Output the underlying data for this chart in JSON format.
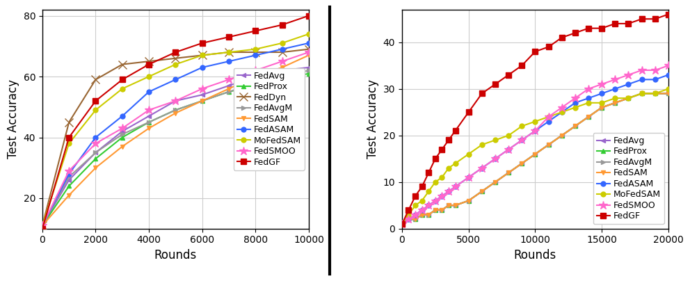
{
  "left": {
    "xlabel": "Rounds",
    "ylabel": "Test Accuracy",
    "xlim": [
      0,
      10000
    ],
    "ylim": [
      10,
      82
    ],
    "xticks": [
      0,
      2000,
      4000,
      6000,
      8000,
      10000
    ],
    "yticks": [
      20,
      40,
      60,
      80
    ],
    "series": {
      "FedAvg": {
        "color": "#9966CC",
        "marker": "<",
        "x": [
          0,
          1000,
          2000,
          3000,
          4000,
          5000,
          6000,
          7000,
          8000,
          9000,
          10000
        ],
        "y": [
          11,
          26,
          35,
          42,
          47,
          52,
          54,
          57,
          60,
          62,
          63
        ]
      },
      "FedProx": {
        "color": "#33CC33",
        "marker": "^",
        "x": [
          0,
          1000,
          2000,
          3000,
          4000,
          5000,
          6000,
          7000,
          8000,
          9000,
          10000
        ],
        "y": [
          11,
          24,
          33,
          40,
          45,
          49,
          52,
          55,
          57,
          59,
          61
        ]
      },
      "FedDyn": {
        "color": "#996633",
        "marker": "x",
        "x": [
          0,
          1000,
          2000,
          3000,
          4000,
          5000,
          6000,
          7000,
          8000,
          9000,
          10000
        ],
        "y": [
          11,
          45,
          59,
          64,
          65,
          66,
          67,
          68,
          68,
          68,
          69
        ]
      },
      "FedAvgM": {
        "color": "#999999",
        "marker": ">",
        "x": [
          0,
          1000,
          2000,
          3000,
          4000,
          5000,
          6000,
          7000,
          8000,
          9000,
          10000
        ],
        "y": [
          11,
          27,
          35,
          41,
          45,
          49,
          52,
          55,
          58,
          60,
          62
        ]
      },
      "FedSAM": {
        "color": "#FF9933",
        "marker": "v",
        "x": [
          0,
          1000,
          2000,
          3000,
          4000,
          5000,
          6000,
          7000,
          8000,
          9000,
          10000
        ],
        "y": [
          11,
          21,
          30,
          37,
          43,
          48,
          52,
          56,
          60,
          63,
          67
        ]
      },
      "FedASAM": {
        "color": "#3366FF",
        "marker": "o",
        "x": [
          0,
          1000,
          2000,
          3000,
          4000,
          5000,
          6000,
          7000,
          8000,
          9000,
          10000
        ],
        "y": [
          11,
          28,
          40,
          47,
          55,
          59,
          63,
          65,
          67,
          69,
          71
        ]
      },
      "MoFedSAM": {
        "color": "#CCCC00",
        "marker": "o",
        "x": [
          0,
          1000,
          2000,
          3000,
          4000,
          5000,
          6000,
          7000,
          8000,
          9000,
          10000
        ],
        "y": [
          11,
          38,
          49,
          56,
          60,
          64,
          67,
          68,
          69,
          71,
          74
        ]
      },
      "FedSMOO": {
        "color": "#FF66CC",
        "marker": "*",
        "x": [
          0,
          1000,
          2000,
          3000,
          4000,
          5000,
          6000,
          7000,
          8000,
          9000,
          10000
        ],
        "y": [
          11,
          29,
          38,
          43,
          49,
          52,
          56,
          59,
          62,
          65,
          68
        ]
      },
      "FedGF": {
        "color": "#CC0000",
        "marker": "s",
        "x": [
          0,
          1000,
          2000,
          3000,
          4000,
          5000,
          6000,
          7000,
          8000,
          9000,
          10000
        ],
        "y": [
          10,
          40,
          52,
          59,
          64,
          68,
          71,
          73,
          75,
          77,
          80
        ]
      }
    }
  },
  "right": {
    "xlabel": "Rounds",
    "ylabel": "Test Accuracy",
    "xlim": [
      0,
      20000
    ],
    "ylim": [
      0,
      47
    ],
    "xticks": [
      0,
      5000,
      10000,
      15000,
      20000
    ],
    "yticks": [
      0,
      10,
      20,
      30,
      40
    ],
    "series": {
      "FedAvg": {
        "color": "#9966CC",
        "marker": "<",
        "x": [
          0,
          500,
          1000,
          1500,
          2000,
          2500,
          3000,
          3500,
          4000,
          5000,
          6000,
          7000,
          8000,
          9000,
          10000,
          11000,
          12000,
          13000,
          14000,
          15000,
          16000,
          17000,
          18000,
          19000,
          20000
        ],
        "y": [
          1,
          2,
          2,
          3,
          3,
          4,
          4,
          5,
          5,
          6,
          8,
          10,
          12,
          14,
          16,
          18,
          20,
          22,
          24,
          26,
          27,
          28,
          29,
          29,
          29
        ]
      },
      "FedProx": {
        "color": "#33CC33",
        "marker": "^",
        "x": [
          0,
          500,
          1000,
          1500,
          2000,
          2500,
          3000,
          3500,
          4000,
          5000,
          6000,
          7000,
          8000,
          9000,
          10000,
          11000,
          12000,
          13000,
          14000,
          15000,
          16000,
          17000,
          18000,
          19000,
          20000
        ],
        "y": [
          1,
          2,
          2,
          3,
          3,
          4,
          4,
          5,
          5,
          6,
          8,
          10,
          12,
          14,
          16,
          18,
          20,
          22,
          24,
          26,
          27,
          28,
          29,
          29,
          29
        ]
      },
      "FedAvgM": {
        "color": "#999999",
        "marker": ">",
        "x": [
          0,
          500,
          1000,
          1500,
          2000,
          2500,
          3000,
          3500,
          4000,
          5000,
          6000,
          7000,
          8000,
          9000,
          10000,
          11000,
          12000,
          13000,
          14000,
          15000,
          16000,
          17000,
          18000,
          19000,
          20000
        ],
        "y": [
          1,
          2,
          2,
          3,
          3,
          4,
          4,
          5,
          5,
          6,
          8,
          10,
          12,
          14,
          16,
          18,
          20,
          22,
          24,
          26,
          27,
          28,
          29,
          29,
          29
        ]
      },
      "FedSAM": {
        "color": "#FF9933",
        "marker": "v",
        "x": [
          0,
          500,
          1000,
          1500,
          2000,
          2500,
          3000,
          3500,
          4000,
          5000,
          6000,
          7000,
          8000,
          9000,
          10000,
          11000,
          12000,
          13000,
          14000,
          15000,
          16000,
          17000,
          18000,
          19000,
          20000
        ],
        "y": [
          1,
          2,
          2,
          3,
          3,
          4,
          4,
          5,
          5,
          6,
          8,
          10,
          12,
          14,
          16,
          18,
          20,
          22,
          24,
          26,
          27,
          28,
          29,
          29,
          29
        ]
      },
      "FedASAM": {
        "color": "#3366FF",
        "marker": "o",
        "x": [
          0,
          500,
          1000,
          1500,
          2000,
          2500,
          3000,
          3500,
          4000,
          5000,
          6000,
          7000,
          8000,
          9000,
          10000,
          11000,
          12000,
          13000,
          14000,
          15000,
          16000,
          17000,
          18000,
          19000,
          20000
        ],
        "y": [
          1,
          2,
          3,
          4,
          5,
          6,
          7,
          8,
          9,
          11,
          13,
          15,
          17,
          19,
          21,
          23,
          25,
          27,
          28,
          29,
          30,
          31,
          32,
          32,
          33
        ]
      },
      "MoFedSAM": {
        "color": "#CCCC00",
        "marker": "o",
        "x": [
          0,
          500,
          1000,
          1500,
          2000,
          2500,
          3000,
          3500,
          4000,
          5000,
          6000,
          7000,
          8000,
          9000,
          10000,
          11000,
          12000,
          13000,
          14000,
          15000,
          16000,
          17000,
          18000,
          19000,
          20000
        ],
        "y": [
          1,
          3,
          5,
          6,
          8,
          10,
          11,
          13,
          14,
          16,
          18,
          19,
          20,
          22,
          23,
          24,
          25,
          26,
          27,
          27,
          28,
          28,
          29,
          29,
          30
        ]
      },
      "FedSMOO": {
        "color": "#FF66CC",
        "marker": "*",
        "x": [
          0,
          500,
          1000,
          1500,
          2000,
          2500,
          3000,
          3500,
          4000,
          5000,
          6000,
          7000,
          8000,
          9000,
          10000,
          11000,
          12000,
          13000,
          14000,
          15000,
          16000,
          17000,
          18000,
          19000,
          20000
        ],
        "y": [
          1,
          2,
          3,
          4,
          5,
          6,
          7,
          8,
          9,
          11,
          13,
          15,
          17,
          19,
          21,
          24,
          26,
          28,
          30,
          31,
          32,
          33,
          34,
          34,
          35
        ]
      },
      "FedGF": {
        "color": "#CC0000",
        "marker": "s",
        "x": [
          0,
          500,
          1000,
          1500,
          2000,
          2500,
          3000,
          3500,
          4000,
          5000,
          6000,
          7000,
          8000,
          9000,
          10000,
          11000,
          12000,
          13000,
          14000,
          15000,
          16000,
          17000,
          18000,
          19000,
          20000
        ],
        "y": [
          1,
          4,
          7,
          9,
          12,
          15,
          17,
          19,
          21,
          25,
          29,
          31,
          33,
          35,
          38,
          39,
          41,
          42,
          43,
          43,
          44,
          44,
          45,
          45,
          46
        ]
      }
    }
  },
  "divider_color": "#000000",
  "bg_color": "#ffffff",
  "grid_color": "#cccccc",
  "linewidth": 1.5,
  "markersize": 5,
  "fontsize_label": 12,
  "fontsize_tick": 10,
  "fontsize_legend": 9,
  "left_legend_loc": "center right",
  "right_legend_loc": "lower right"
}
